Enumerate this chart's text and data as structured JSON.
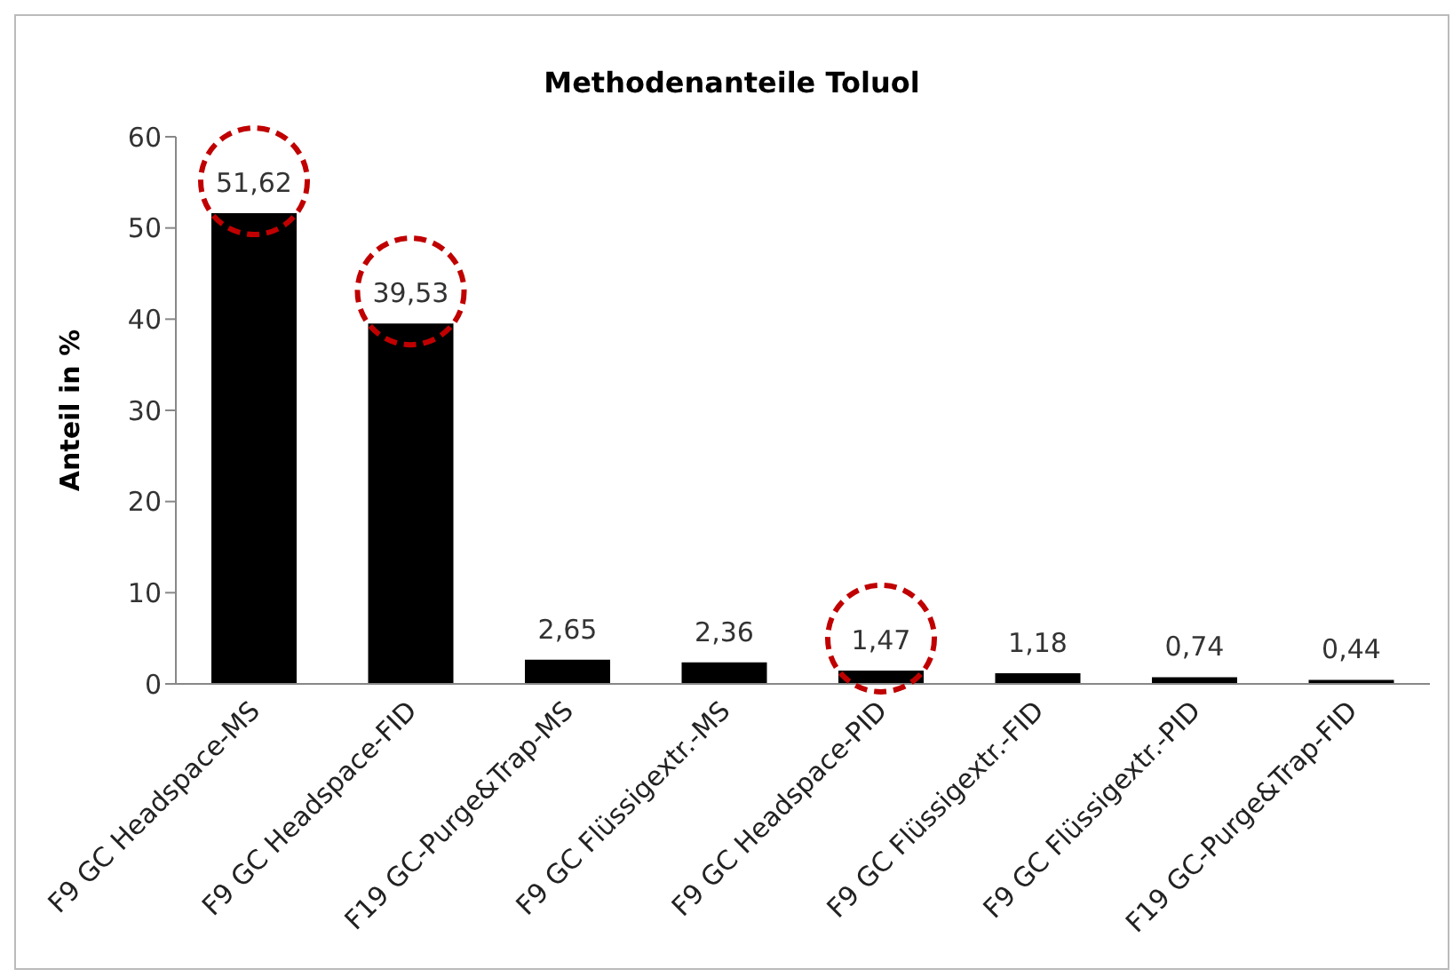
{
  "chart_data": {
    "type": "bar",
    "title": "Methodenanteile Toluol",
    "ylabel": "Anteil in %",
    "categories": [
      "F9 GC Headspace-MS",
      "F9 GC Headspace-FID",
      "F19 GC-Purge&Trap-MS",
      "F9 GC Flüssigextr.-MS",
      "F9 GC Headspace-PID",
      "F9 GC Flüssigextr.-FID",
      "F9 GC Flüssigextr.-PID",
      "F19 GC-Purge&Trap-FID"
    ],
    "values": [
      51.62,
      39.53,
      2.65,
      2.36,
      1.47,
      1.18,
      0.74,
      0.44
    ],
    "value_labels": [
      "51,62",
      "39,53",
      "2,65",
      "2,36",
      "1,47",
      "1,18",
      "0,74",
      "0,44"
    ],
    "color": "#000000",
    "ylim": [
      0,
      60
    ],
    "yticks": [
      0,
      10,
      20,
      30,
      40,
      50,
      60
    ]
  }
}
